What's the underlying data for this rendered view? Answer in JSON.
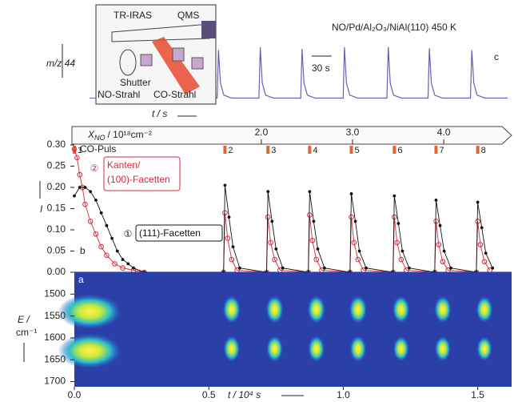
{
  "inset": {
    "tr_iras": "TR-IRAS",
    "qms": "QMS",
    "shutter": "Shutter",
    "no_beam": "NO-Strahl",
    "co_beam": "CO-Strahl"
  },
  "chart_data": [
    {
      "type": "line",
      "title": "NO/Pd/Al₂O₃/NiAl(110) 450 K",
      "panel_label": "c",
      "ylabel": "m/z 44",
      "xlabel": "t / s",
      "color": "#6a5fb0",
      "xlim": [
        0,
        440
      ],
      "ylim": [
        0,
        1
      ],
      "scale_bar": {
        "value": 30,
        "label": "30 s"
      },
      "x": [
        0,
        2,
        4,
        7,
        12,
        24,
        65,
        67,
        70,
        75,
        87,
        128,
        130,
        133,
        138,
        150,
        192,
        194,
        197,
        202,
        214,
        258,
        260,
        263,
        268,
        280,
        320,
        322,
        325,
        330,
        342,
        384,
        386,
        389,
        394,
        406,
        440
      ],
      "values": [
        0.1,
        0.1,
        0.9,
        0.35,
        0.15,
        0.1,
        0.1,
        0.95,
        0.35,
        0.15,
        0.1,
        0.1,
        0.92,
        0.35,
        0.15,
        0.1,
        0.1,
        0.95,
        0.35,
        0.15,
        0.1,
        0.1,
        0.95,
        0.35,
        0.15,
        0.1,
        0.1,
        0.93,
        0.35,
        0.15,
        0.1,
        0.1,
        0.9,
        0.35,
        0.15,
        0.1,
        0.1
      ]
    },
    {
      "type": "line",
      "panel_label": "b",
      "ylabel": "I",
      "xlim": [
        0,
        1.62
      ],
      "ylim": [
        0,
        0.3
      ],
      "yticks": [
        {
          "value": 0,
          "label": "0.00"
        },
        0.05,
        {
          "value": 0.1,
          "label": "0.10"
        },
        0.15,
        {
          "value": 0.2,
          "label": "0.20"
        },
        0.25,
        {
          "value": 0.3,
          "label": "0.30"
        }
      ],
      "x_no_axis": {
        "symbol": "X",
        "subscript": "NO",
        "unit": "/ 10¹⁸cm⁻²",
        "xlim": [
          -0.05,
          4.7
        ],
        "xticks": [
          {
            "value": 2,
            "label": "2.0"
          },
          {
            "value": 3,
            "label": "3.0"
          },
          {
            "value": 4,
            "label": "4.0"
          }
        ]
      },
      "co_pulses": {
        "label": "CO-Puls",
        "x": [
          0.0,
          0.56,
          0.72,
          0.875,
          1.03,
          1.19,
          1.345,
          1.5
        ],
        "labels": [
          1,
          2,
          3,
          4,
          5,
          6,
          7,
          8
        ]
      },
      "series": [
        {
          "name": [
            "Kanten/",
            "(100)-Facetten"
          ],
          "marker_label": "②",
          "color": "#d8283c",
          "x": [
            0.0,
            0.01,
            0.02,
            0.03,
            0.04,
            0.06,
            0.08,
            0.1,
            0.12,
            0.15,
            0.18,
            0.22,
            0.26,
            0.555,
            0.56,
            0.57,
            0.585,
            0.605,
            0.715,
            0.72,
            0.73,
            0.745,
            0.765,
            0.87,
            0.875,
            0.885,
            0.9,
            0.92,
            1.025,
            1.03,
            1.04,
            1.055,
            1.075,
            1.185,
            1.19,
            1.2,
            1.215,
            1.235,
            1.34,
            1.345,
            1.355,
            1.37,
            1.39,
            1.495,
            1.5,
            1.51,
            1.525,
            1.545
          ],
          "values": [
            0.29,
            0.27,
            0.23,
            0.2,
            0.16,
            0.12,
            0.09,
            0.06,
            0.04,
            0.02,
            0.01,
            0.005,
            0.0,
            0,
            0.14,
            0.08,
            0.03,
            0.005,
            0,
            0.13,
            0.07,
            0.03,
            0.005,
            0,
            0.135,
            0.075,
            0.03,
            0.005,
            0,
            0.13,
            0.07,
            0.03,
            0.005,
            0,
            0.13,
            0.07,
            0.03,
            0.005,
            0,
            0.12,
            0.065,
            0.025,
            0.005,
            0,
            0.12,
            0.065,
            0.025,
            0.005
          ]
        },
        {
          "name": [
            "(111)-Facetten"
          ],
          "marker_label": "①",
          "color": "#111111",
          "x": [
            0.0,
            0.02,
            0.04,
            0.06,
            0.08,
            0.1,
            0.12,
            0.14,
            0.16,
            0.18,
            0.2,
            0.22,
            0.26,
            0.555,
            0.56,
            0.575,
            0.59,
            0.615,
            0.715,
            0.72,
            0.735,
            0.75,
            0.775,
            0.87,
            0.875,
            0.89,
            0.905,
            0.93,
            1.025,
            1.03,
            1.045,
            1.06,
            1.085,
            1.185,
            1.19,
            1.205,
            1.22,
            1.245,
            1.34,
            1.345,
            1.36,
            1.375,
            1.4,
            1.495,
            1.5,
            1.515,
            1.53,
            1.555
          ],
          "values": [
            0.18,
            0.2,
            0.2,
            0.19,
            0.17,
            0.14,
            0.11,
            0.08,
            0.05,
            0.03,
            0.02,
            0.01,
            0.0,
            0,
            0.205,
            0.13,
            0.06,
            0.01,
            0,
            0.19,
            0.12,
            0.055,
            0.01,
            0,
            0.19,
            0.12,
            0.055,
            0.01,
            0,
            0.185,
            0.12,
            0.05,
            0.01,
            0,
            0.18,
            0.115,
            0.05,
            0.01,
            0,
            0.17,
            0.11,
            0.05,
            0.01,
            0,
            0.165,
            0.105,
            0.045,
            0.01
          ]
        }
      ]
    },
    {
      "type": "heatmap",
      "panel_label": "a",
      "ylabel": [
        "E /",
        "cm⁻¹"
      ],
      "xlabel": "t / 10⁴ s",
      "xlim": [
        0,
        1.62
      ],
      "xticks": [
        {
          "value": 0,
          "label": "0.0"
        },
        0.5,
        {
          "value": 1,
          "label": "1.0"
        },
        1.5
      ],
      "ylim": [
        1450,
        1710
      ],
      "yticks": [
        1500,
        1550,
        1600,
        1650,
        1700
      ],
      "spots": {
        "x": [
          0.04,
          0.04,
          0.585,
          0.585,
          0.745,
          0.745,
          0.9,
          0.9,
          1.055,
          1.055,
          1.215,
          1.215,
          1.37,
          1.37,
          1.525,
          1.525
        ],
        "y": [
          1540,
          1630,
          1535,
          1625,
          1535,
          1625,
          1535,
          1625,
          1535,
          1625,
          1535,
          1625,
          1535,
          1625,
          1535,
          1625
        ],
        "values": [
          1,
          1,
          0.8,
          0.75,
          0.8,
          0.75,
          0.8,
          0.75,
          0.8,
          0.75,
          0.78,
          0.72,
          0.78,
          0.72,
          0.76,
          0.7
        ]
      }
    }
  ]
}
